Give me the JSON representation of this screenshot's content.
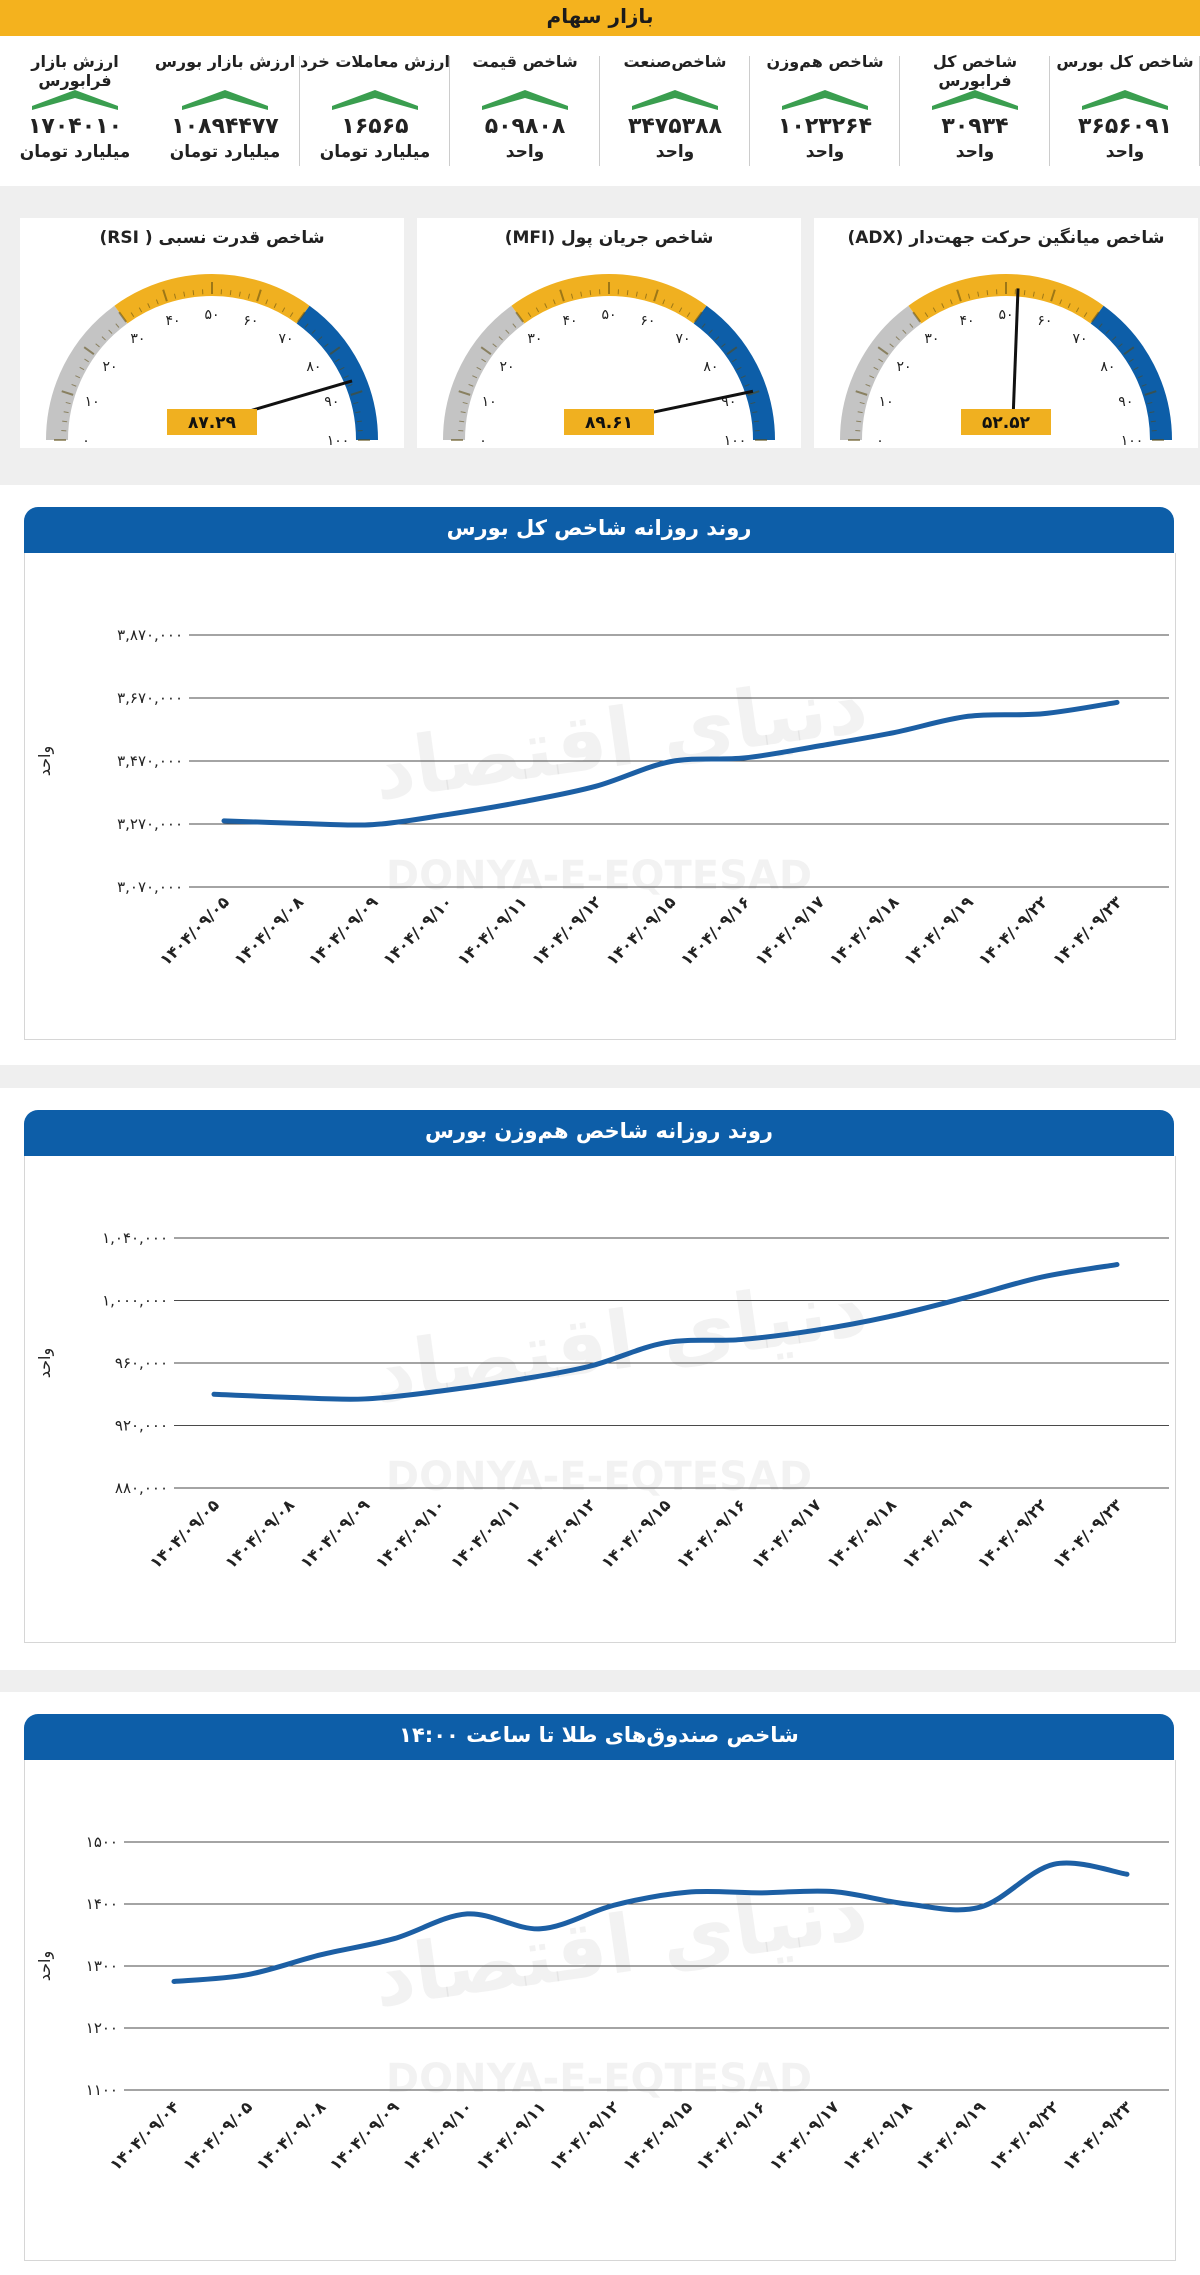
{
  "header": {
    "title": "بازار سهام"
  },
  "stats": [
    {
      "label": "شاخص کل بورس",
      "value": "۳۶۵۶۰۹۱",
      "unit": "واحد"
    },
    {
      "label": "شاخص کل فرابورس",
      "value": "۳۰۹۳۴",
      "unit": "واحد"
    },
    {
      "label": "شاخص هم‌وزن",
      "value": "۱۰۲۳۲۶۴",
      "unit": "واحد"
    },
    {
      "label": "شاخص‌صنعت",
      "value": "۳۴۷۵۳۸۸",
      "unit": "واحد"
    },
    {
      "label": "شاخص قیمت",
      "value": "۵۰۹۸۰۸",
      "unit": "واحد"
    },
    {
      "label": "ارزش معاملات خرد",
      "value": "۱۶۵۶۵",
      "unit": "میلیارد تومان"
    },
    {
      "label": "ارزش بازار بورس",
      "value": "۱۰۸۹۴۴۷۷",
      "unit": "میلیارد تومان"
    },
    {
      "label": "ارزش بازار فرابورس",
      "value": "۱۷۰۴۰۱۰",
      "unit": "میلیارد تومان"
    }
  ],
  "colors": {
    "accent": "#f4b21e",
    "blue": "#0d5ea8",
    "gray": "#c4c4c4",
    "green": "#3a9e4f"
  },
  "gauges": [
    {
      "title": "شاخص قدرت نسبی ( RSI)",
      "value": 87.29,
      "value_label": "۸۷.۲۹",
      "ticks": [
        "۰",
        "۱۰",
        "۲۰",
        "۳۰",
        "۴۰",
        "۵۰",
        "۶۰",
        "۷۰",
        "۸۰",
        "۹۰",
        "۱۰۰"
      ]
    },
    {
      "title": "شاخص جریان پول (MFI)",
      "value": 89.61,
      "value_label": "۸۹.۶۱",
      "ticks": [
        "۰",
        "۱۰",
        "۲۰",
        "۳۰",
        "۴۰",
        "۵۰",
        "۶۰",
        "۷۰",
        "۸۰",
        "۹۰",
        "۱۰۰"
      ]
    },
    {
      "title": "شاخص میانگین حرکت جهت‌دار (ADX)",
      "value": 52.52,
      "value_label": "۵۲.۵۲",
      "ticks": [
        "۰",
        "۱۰",
        "۲۰",
        "۳۰",
        "۴۰",
        "۵۰",
        "۶۰",
        "۷۰",
        "۸۰",
        "۹۰",
        "۱۰۰"
      ]
    }
  ],
  "watermark": {
    "text": "DONYA-E-EQTESAD",
    "fa": "دنیای اقتصاد"
  },
  "chart_data": [
    {
      "type": "line",
      "title": "روند روزانه شاخص کل بورس",
      "ylabel": "واحد",
      "ylim": [
        3070000,
        3870000
      ],
      "yticks": [
        3070000,
        3270000,
        3470000,
        3670000,
        3870000
      ],
      "ytick_labels": [
        "۳,۰۷۰,۰۰۰",
        "۳,۲۷۰,۰۰۰",
        "۳,۴۷۰,۰۰۰",
        "۳,۶۷۰,۰۰۰",
        "۳,۸۷۰,۰۰۰"
      ],
      "categories": [
        "۱۴۰۴/۰۹/۰۵",
        "۱۴۰۴/۰۹/۰۸",
        "۱۴۰۴/۰۹/۰۹",
        "۱۴۰۴/۰۹/۱۰",
        "۱۴۰۴/۰۹/۱۱",
        "۱۴۰۴/۰۹/۱۲",
        "۱۴۰۴/۰۹/۱۵",
        "۱۴۰۴/۰۹/۱۶",
        "۱۴۰۴/۰۹/۱۷",
        "۱۴۰۴/۰۹/۱۸",
        "۱۴۰۴/۰۹/۱۹",
        "۱۴۰۴/۰۹/۲۲",
        "۱۴۰۴/۰۹/۲۳"
      ],
      "values": [
        3280000,
        3272000,
        3268000,
        3300000,
        3340000,
        3390000,
        3468000,
        3480000,
        3518000,
        3560000,
        3612000,
        3620000,
        3656000
      ]
    },
    {
      "type": "line",
      "title": "روند روزانه شاخص هم‌وزن بورس",
      "ylabel": "واحد",
      "ylim": [
        880000,
        1040000
      ],
      "yticks": [
        880000,
        920000,
        960000,
        1000000,
        1040000
      ],
      "ytick_labels": [
        "۸۸۰,۰۰۰",
        "۹۲۰,۰۰۰",
        "۹۶۰,۰۰۰",
        "۱,۰۰۰,۰۰۰",
        "۱,۰۴۰,۰۰۰"
      ],
      "categories": [
        "۱۴۰۴/۰۹/۰۵",
        "۱۴۰۴/۰۹/۰۸",
        "۱۴۰۴/۰۹/۰۹",
        "۱۴۰۴/۰۹/۱۰",
        "۱۴۰۴/۰۹/۱۱",
        "۱۴۰۴/۰۹/۱۲",
        "۱۴۰۴/۰۹/۱۵",
        "۱۴۰۴/۰۹/۱۶",
        "۱۴۰۴/۰۹/۱۷",
        "۱۴۰۴/۰۹/۱۸",
        "۱۴۰۴/۰۹/۱۹",
        "۱۴۰۴/۰۹/۲۲",
        "۱۴۰۴/۰۹/۲۳"
      ],
      "values": [
        940000,
        938000,
        937000,
        942000,
        949000,
        958000,
        973000,
        975000,
        981000,
        990000,
        1002000,
        1015000,
        1023000
      ]
    },
    {
      "type": "line",
      "title": "شاخص صندوق‌های طلا تا ساعت ۱۴:۰۰",
      "ylabel": "واحد",
      "ylim": [
        1100,
        1500
      ],
      "yticks": [
        1100,
        1200,
        1300,
        1400,
        1500
      ],
      "ytick_labels": [
        "۱۱۰۰",
        "۱۲۰۰",
        "۱۳۰۰",
        "۱۴۰۰",
        "۱۵۰۰"
      ],
      "categories": [
        "۱۴۰۴/۰۹/۰۴",
        "۱۴۰۴/۰۹/۰۵",
        "۱۴۰۴/۰۹/۰۸",
        "۱۴۰۴/۰۹/۰۹",
        "۱۴۰۴/۰۹/۱۰",
        "۱۴۰۴/۰۹/۱۱",
        "۱۴۰۴/۰۹/۱۲",
        "۱۴۰۴/۰۹/۱۵",
        "۱۴۰۴/۰۹/۱۶",
        "۱۴۰۴/۰۹/۱۷",
        "۱۴۰۴/۰۹/۱۸",
        "۱۴۰۴/۰۹/۱۹",
        "۱۴۰۴/۰۹/۲۲",
        "۱۴۰۴/۰۹/۲۳"
      ],
      "values": [
        1275,
        1286,
        1318,
        1344,
        1384,
        1360,
        1398,
        1419,
        1418,
        1420,
        1400,
        1395,
        1464,
        1448
      ]
    }
  ]
}
